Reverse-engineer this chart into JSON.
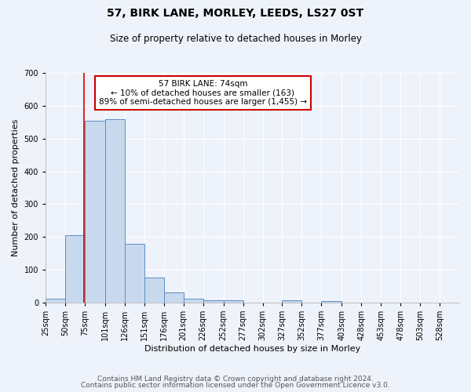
{
  "title": "57, BIRK LANE, MORLEY, LEEDS, LS27 0ST",
  "subtitle": "Size of property relative to detached houses in Morley",
  "xlabel": "Distribution of detached houses by size in Morley",
  "ylabel": "Number of detached properties",
  "bin_labels": [
    "25sqm",
    "50sqm",
    "75sqm",
    "101sqm",
    "126sqm",
    "151sqm",
    "176sqm",
    "201sqm",
    "226sqm",
    "252sqm",
    "277sqm",
    "302sqm",
    "327sqm",
    "352sqm",
    "377sqm",
    "403sqm",
    "428sqm",
    "453sqm",
    "478sqm",
    "503sqm",
    "528sqm"
  ],
  "bar_values": [
    12,
    205,
    555,
    560,
    178,
    77,
    30,
    12,
    8,
    8,
    0,
    0,
    7,
    0,
    5,
    0,
    0,
    0,
    0,
    0,
    0
  ],
  "bar_color": "#c8d9ee",
  "bar_edge_color": "#5b8ec4",
  "bin_edges": [
    25,
    50,
    75,
    101,
    126,
    151,
    176,
    201,
    226,
    252,
    277,
    302,
    327,
    352,
    377,
    403,
    428,
    453,
    478,
    503,
    528,
    553
  ],
  "annotation_title": "57 BIRK LANE: 74sqm",
  "annotation_line1": "← 10% of detached houses are smaller (163)",
  "annotation_line2": "89% of semi-detached houses are larger (1,455) →",
  "annotation_box_color": "#ffffff",
  "annotation_box_edge": "#cc0000",
  "vline_x": 74,
  "vline_color": "#cc0000",
  "ylim": [
    0,
    700
  ],
  "yticks": [
    0,
    100,
    200,
    300,
    400,
    500,
    600,
    700
  ],
  "footer1": "Contains HM Land Registry data © Crown copyright and database right 2024.",
  "footer2": "Contains public sector information licensed under the Open Government Licence v3.0.",
  "bg_color": "#eef2fa",
  "plot_bg_color": "#eef2fa",
  "grid_color": "#ffffff",
  "title_fontsize": 10,
  "subtitle_fontsize": 8.5,
  "axis_label_fontsize": 8,
  "tick_fontsize": 7,
  "footer_fontsize": 6.5,
  "annotation_fontsize": 7.5
}
